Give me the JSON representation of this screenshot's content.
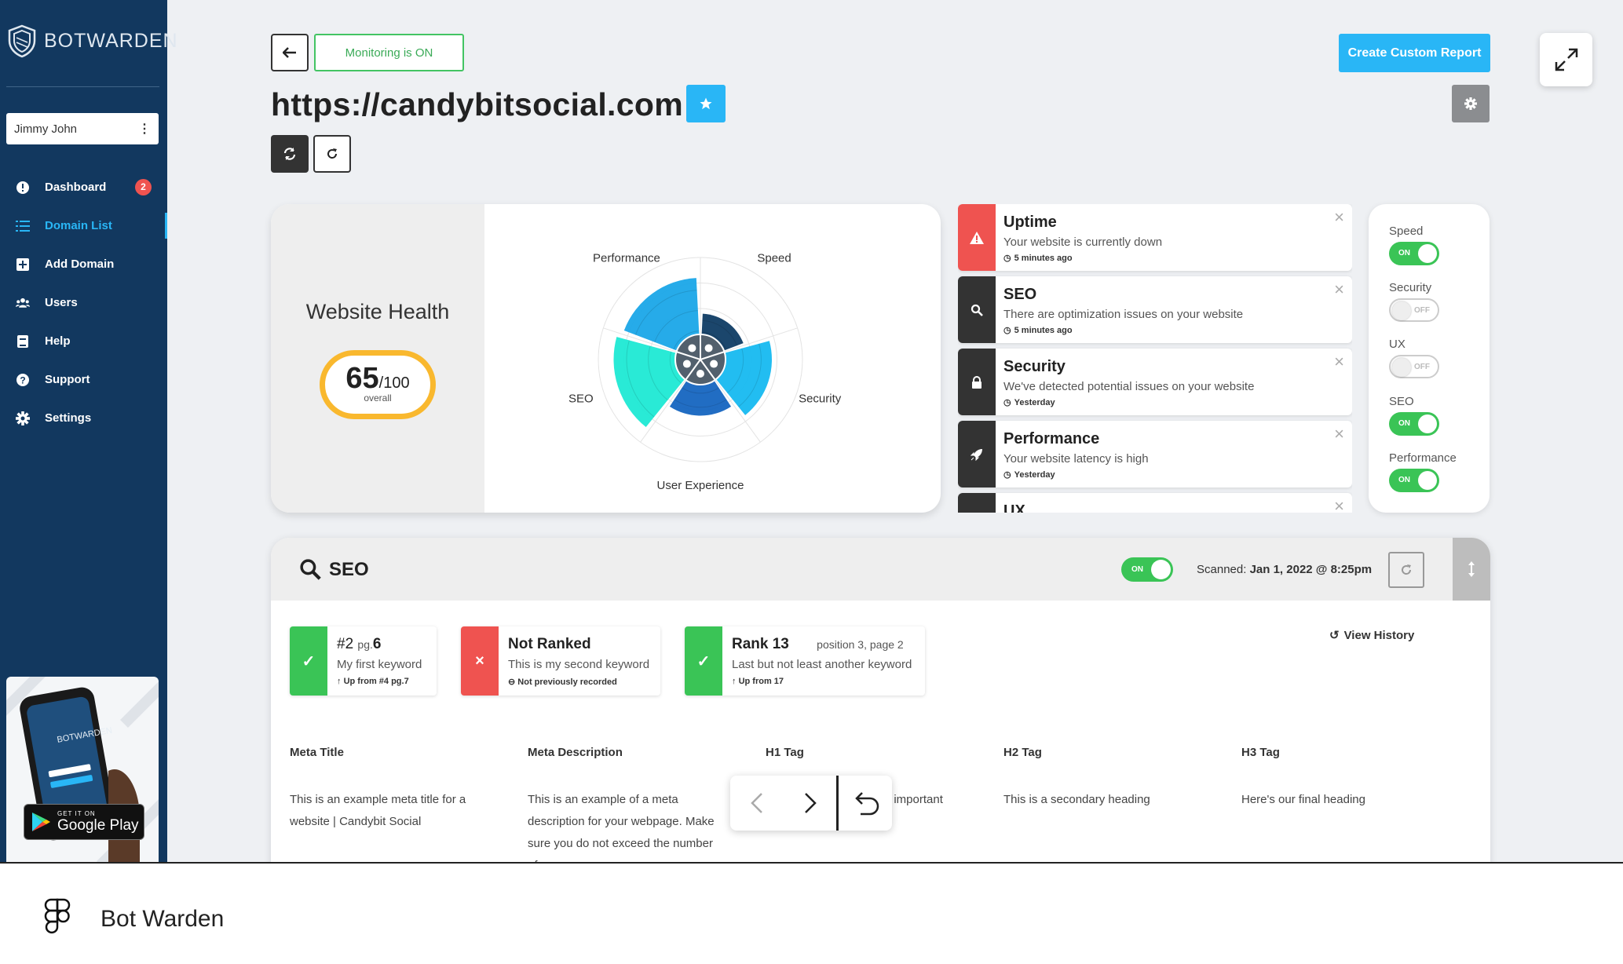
{
  "sidebar": {
    "brand_light": "BOT",
    "brand_bold": "WARDEN",
    "user": "Jimmy John",
    "nav": [
      {
        "label": "Dashboard",
        "icon": "alert-circle-icon",
        "badge": "2"
      },
      {
        "label": "Domain List",
        "icon": "list-icon",
        "active": true
      },
      {
        "label": "Add Domain",
        "icon": "plus-square-icon"
      },
      {
        "label": "Users",
        "icon": "users-icon"
      },
      {
        "label": "Help",
        "icon": "book-icon"
      },
      {
        "label": "Support",
        "icon": "question-circle-icon"
      },
      {
        "label": "Settings",
        "icon": "gear-icon"
      }
    ],
    "promo": {
      "store_small": "GET IT ON",
      "store_name": "Google Play",
      "phone_brand": "BOTWARDEN"
    }
  },
  "header": {
    "monitoring": "Monitoring is ON",
    "domain": "https://candybitsocial.com",
    "create_report": "Create Custom Report"
  },
  "health": {
    "title": "Website Health",
    "score": "65",
    "max": "/100",
    "score_label": "overall"
  },
  "chart_data": {
    "type": "radar",
    "categories": [
      "Performance",
      "Speed",
      "Security",
      "User Experience",
      "SEO"
    ],
    "values": [
      80,
      45,
      70,
      55,
      85
    ],
    "colors": [
      "#1aa7e8",
      "#0f3c64",
      "#16b9f0",
      "#1565c0",
      "#1de9d4"
    ],
    "max": 100
  },
  "alerts": [
    {
      "title": "Uptime",
      "desc": "Your website is currently down",
      "time": "5 minutes ago",
      "icon": "warning-icon",
      "tone": "red"
    },
    {
      "title": "SEO",
      "desc": "There are optimization issues on your website",
      "time": "5 minutes ago",
      "icon": "search-icon",
      "tone": "dark"
    },
    {
      "title": "Security",
      "desc": "We've detected potential issues on your website",
      "time": "Yesterday",
      "icon": "lock-icon",
      "tone": "dark"
    },
    {
      "title": "Performance",
      "desc": "Your website latency is high",
      "time": "Yesterday",
      "icon": "rocket-icon",
      "tone": "dark"
    },
    {
      "title": "UX",
      "desc": "",
      "time": "",
      "icon": "glasses-icon",
      "tone": "dark"
    }
  ],
  "toggles": [
    {
      "label": "Speed",
      "state": "ON"
    },
    {
      "label": "Security",
      "state": "OFF"
    },
    {
      "label": "UX",
      "state": "OFF"
    },
    {
      "label": "SEO",
      "state": "ON"
    },
    {
      "label": "Performance",
      "state": "ON"
    }
  ],
  "seo": {
    "title": "SEO",
    "toggle": "ON",
    "scanned_label": "Scanned:",
    "scanned_value": "Jan 1, 2022 @ 8:25pm",
    "view_history": "View History",
    "keywords": [
      {
        "rank_prefix": "#2",
        "rank_mid": "pg.",
        "rank_page": "6",
        "keyword": "My first keyword",
        "note": "Up from #4 pg.7",
        "status": "up"
      },
      {
        "rank_prefix": "Not Ranked",
        "keyword": "This is my second keyword",
        "note": "Not previously recorded",
        "status": "down"
      },
      {
        "rank_prefix": "Rank 13",
        "rank_extra": "position 3, page 2",
        "keyword": "Last but not least another keyword",
        "note": "Up from 17",
        "status": "up"
      }
    ],
    "meta": [
      {
        "head": "Meta Title",
        "value": "This is an example meta title for a website | Candybit Social"
      },
      {
        "head": "Meta Description",
        "value": "This is an example of a meta description for your webpage. Make sure you do not exceed the number of"
      },
      {
        "head": "H1 Tag",
        "value": "t important"
      },
      {
        "head": "H2 Tag",
        "value": "This is a secondary heading"
      },
      {
        "head": "H3 Tag",
        "value": "Here's our final heading"
      }
    ]
  },
  "footer": {
    "title": "Bot Warden"
  }
}
